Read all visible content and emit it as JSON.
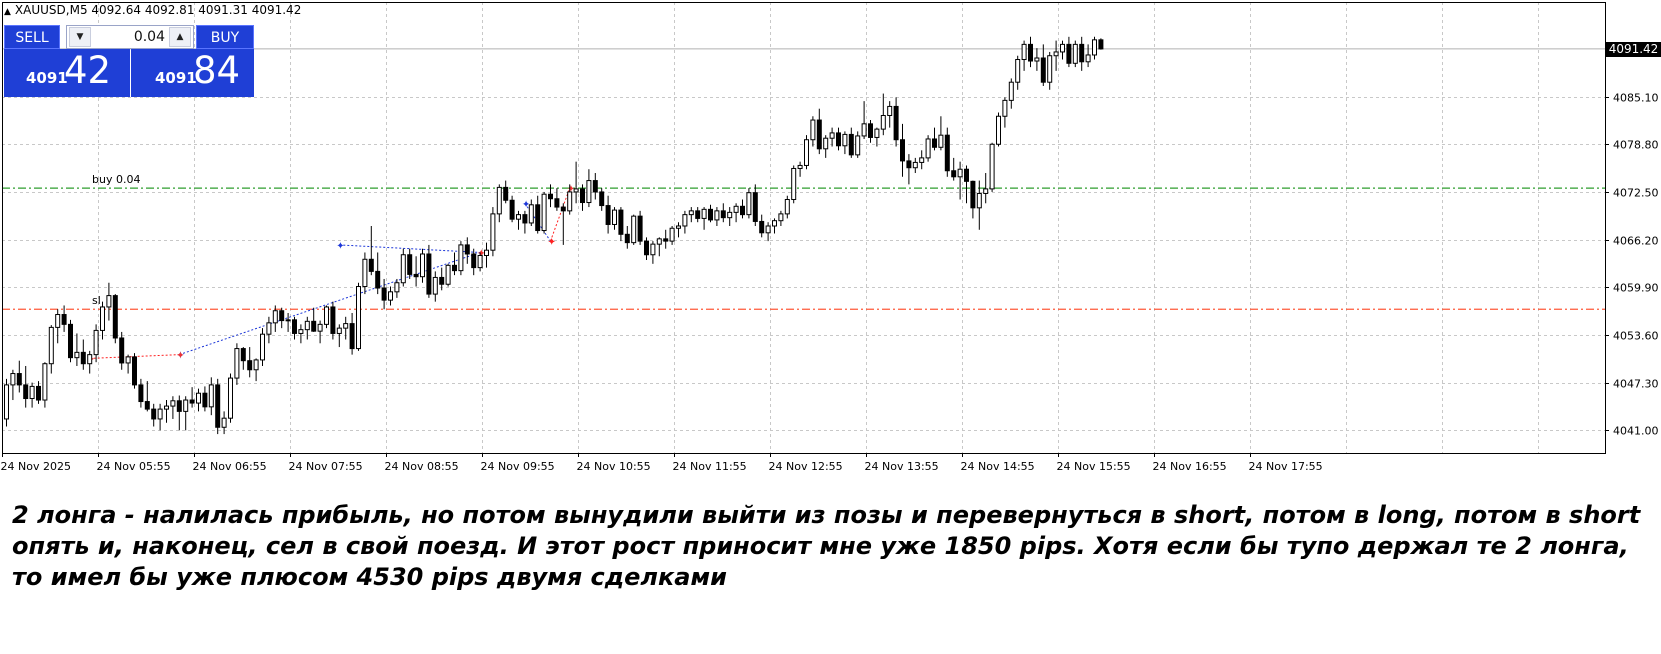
{
  "symbol_line": "XAUUSD,M5  4092.64 4092.81 4091.31 4091.42",
  "one_click": {
    "sell_label": "SELL",
    "buy_label": "BUY",
    "lot": "0.04",
    "sell_price_small": "4091",
    "sell_price_big": "42",
    "buy_price_small": "4091",
    "buy_price_big": "84"
  },
  "order_lines": {
    "buy_label": "buy 0.04",
    "sl_label": "sl",
    "buy_price": 4073.0,
    "sl_price": 4057.0
  },
  "current_price_tag": "4091.42",
  "caption": "2 лонга - налилась прибыль, но потом вынудили выйти из позы и перевернуться в short, потом в long, потом в short опять и, наконец, сел в свой поезд. И этот рост приносит мне уже 1850 pips. Хотя если бы тупо держал те 2 лонга, то имел бы уже плюсом 4530 pips двумя сделками",
  "colors": {
    "buy_line": "#2e9e2e",
    "sl_line": "#ff5a3a",
    "trade_line": "#1c36d8",
    "loss_line": "#ff2020",
    "panel": "#1f3fd6"
  },
  "chart_data": {
    "type": "candlestick",
    "symbol": "XAUUSD",
    "timeframe": "M5",
    "ylim": [
      4038.0,
      4097.6
    ],
    "yticks": [
      "4091.42",
      "4085.10",
      "4078.80",
      "4072.50",
      "4066.20",
      "4059.90",
      "4053.60",
      "4047.30",
      "4041.00"
    ],
    "ytick_values": [
      4085.1,
      4078.8,
      4072.5,
      4066.2,
      4059.9,
      4053.6,
      4047.3,
      4041.0
    ],
    "xticks": [
      "24 Nov 2025",
      "24 Nov 05:55",
      "24 Nov 06:55",
      "24 Nov 07:55",
      "24 Nov 08:55",
      "24 Nov 09:55",
      "24 Nov 10:55",
      "24 Nov 11:55",
      "24 Nov 12:55",
      "24 Nov 13:55",
      "24 Nov 14:55",
      "24 Nov 15:55",
      "24 Nov 16:55",
      "24 Nov 17:55"
    ],
    "grid": true,
    "candles": [
      [
        4042.5,
        4047.8,
        4041.5,
        4047.0
      ],
      [
        4047.0,
        4049.0,
        4045.0,
        4048.5
      ],
      [
        4048.5,
        4050.2,
        4046.0,
        4047.0
      ],
      [
        4047.0,
        4049.5,
        4044.0,
        4045.2
      ],
      [
        4045.2,
        4047.3,
        4044.0,
        4046.8
      ],
      [
        4046.8,
        4047.5,
        4044.5,
        4045.0
      ],
      [
        4045.0,
        4050.0,
        4044.0,
        4049.8
      ],
      [
        4049.8,
        4054.9,
        4048.5,
        4054.6
      ],
      [
        4054.6,
        4057.0,
        4052.5,
        4056.3
      ],
      [
        4056.3,
        4057.5,
        4054.0,
        4055.0
      ],
      [
        4055.0,
        4055.6,
        4050.0,
        4050.6
      ],
      [
        4050.6,
        4053.8,
        4049.5,
        4051.3
      ],
      [
        4051.3,
        4053.0,
        4049.0,
        4049.8
      ],
      [
        4049.8,
        4051.5,
        4048.5,
        4051.0
      ],
      [
        4051.0,
        4055.0,
        4050.0,
        4054.2
      ],
      [
        4054.2,
        4058.0,
        4053.0,
        4057.3
      ],
      [
        4057.3,
        4060.5,
        4055.5,
        4058.8
      ],
      [
        4058.8,
        4059.0,
        4052.5,
        4053.2
      ],
      [
        4053.2,
        4054.0,
        4049.0,
        4049.9
      ],
      [
        4049.9,
        4051.0,
        4048.5,
        4050.7
      ],
      [
        4050.7,
        4051.2,
        4046.5,
        4047.0
      ],
      [
        4047.0,
        4047.8,
        4044.0,
        4044.8
      ],
      [
        4044.8,
        4047.5,
        4043.5,
        4043.8
      ],
      [
        4043.8,
        4044.5,
        4041.5,
        4042.5
      ],
      [
        4042.5,
        4044.5,
        4041.0,
        4043.8
      ],
      [
        4043.8,
        4045.0,
        4042.0,
        4044.2
      ],
      [
        4044.2,
        4045.5,
        4042.5,
        4044.9
      ],
      [
        4044.9,
        4045.6,
        4041.0,
        4043.5
      ],
      [
        4043.5,
        4045.5,
        4041.0,
        4045.0
      ],
      [
        4045.0,
        4046.7,
        4044.0,
        4044.6
      ],
      [
        4044.6,
        4046.5,
        4043.5,
        4045.9
      ],
      [
        4045.9,
        4046.8,
        4043.5,
        4044.1
      ],
      [
        4044.1,
        4048.0,
        4043.0,
        4047.0
      ],
      [
        4047.0,
        4047.8,
        4040.5,
        4041.4
      ],
      [
        4041.4,
        4043.5,
        4040.5,
        4042.6
      ],
      [
        4042.6,
        4048.5,
        4042.0,
        4047.9
      ],
      [
        4047.9,
        4052.5,
        4047.0,
        4051.8
      ],
      [
        4051.8,
        4052.0,
        4049.0,
        4050.2
      ],
      [
        4050.2,
        4052.0,
        4048.0,
        4049.0
      ],
      [
        4049.0,
        4050.5,
        4047.5,
        4050.3
      ],
      [
        4050.3,
        4054.5,
        4049.5,
        4053.7
      ],
      [
        4053.7,
        4056.0,
        4052.5,
        4055.2
      ],
      [
        4055.2,
        4057.5,
        4054.0,
        4056.8
      ],
      [
        4056.8,
        4057.2,
        4054.5,
        4055.5
      ],
      [
        4055.5,
        4056.5,
        4054.0,
        4055.6
      ],
      [
        4055.6,
        4056.0,
        4053.0,
        4053.8
      ],
      [
        4053.8,
        4055.0,
        4052.5,
        4054.3
      ],
      [
        4054.3,
        4056.0,
        4053.0,
        4055.4
      ],
      [
        4055.4,
        4057.2,
        4054.0,
        4054.1
      ],
      [
        4054.1,
        4055.5,
        4052.5,
        4055.0
      ],
      [
        4055.0,
        4057.5,
        4054.5,
        4057.3
      ],
      [
        4057.3,
        4058.0,
        4053.0,
        4053.8
      ],
      [
        4053.8,
        4055.0,
        4052.0,
        4054.5
      ],
      [
        4054.5,
        4056.0,
        4053.0,
        4055.1
      ],
      [
        4055.1,
        4056.5,
        4051.0,
        4051.8
      ],
      [
        4051.8,
        4060.5,
        4051.5,
        4060.0
      ],
      [
        4060.0,
        4064.5,
        4059.0,
        4063.6
      ],
      [
        4063.6,
        4068.0,
        4061.5,
        4062.0
      ],
      [
        4062.0,
        4064.5,
        4059.0,
        4059.8
      ],
      [
        4059.8,
        4061.0,
        4057.0,
        4058.2
      ],
      [
        4058.2,
        4060.0,
        4057.5,
        4059.3
      ],
      [
        4059.3,
        4061.0,
        4058.5,
        4060.5
      ],
      [
        4060.5,
        4065.0,
        4060.0,
        4064.2
      ],
      [
        4064.2,
        4065.0,
        4061.0,
        4061.6
      ],
      [
        4061.6,
        4064.0,
        4060.0,
        4061.3
      ],
      [
        4061.3,
        4065.0,
        4060.5,
        4064.3
      ],
      [
        4064.3,
        4065.5,
        4058.5,
        4059.0
      ],
      [
        4059.0,
        4062.0,
        4058.0,
        4061.2
      ],
      [
        4061.2,
        4062.5,
        4059.5,
        4060.3
      ],
      [
        4060.3,
        4063.0,
        4060.0,
        4062.8
      ],
      [
        4062.8,
        4064.5,
        4061.5,
        4062.1
      ],
      [
        4062.1,
        4066.0,
        4061.5,
        4065.5
      ],
      [
        4065.5,
        4066.5,
        4063.0,
        4064.3
      ],
      [
        4064.3,
        4065.0,
        4061.5,
        4062.5
      ],
      [
        4062.5,
        4064.5,
        4062.0,
        4064.1
      ],
      [
        4064.1,
        4065.8,
        4062.5,
        4064.8
      ],
      [
        4064.8,
        4070.5,
        4064.0,
        4069.6
      ],
      [
        4069.6,
        4073.5,
        4068.5,
        4073.1
      ],
      [
        4073.1,
        4074.0,
        4071.0,
        4071.4
      ],
      [
        4071.4,
        4072.0,
        4068.5,
        4068.9
      ],
      [
        4068.9,
        4070.0,
        4067.5,
        4069.5
      ],
      [
        4069.5,
        4070.0,
        4067.0,
        4068.4
      ],
      [
        4068.4,
        4071.5,
        4068.0,
        4070.8
      ],
      [
        4070.8,
        4072.0,
        4067.0,
        4067.4
      ],
      [
        4067.4,
        4072.5,
        4067.0,
        4072.2
      ],
      [
        4072.2,
        4073.5,
        4070.5,
        4071.6
      ],
      [
        4071.6,
        4073.0,
        4070.0,
        4070.5
      ],
      [
        4070.5,
        4071.0,
        4065.5,
        4070.0
      ],
      [
        4070.0,
        4073.5,
        4069.5,
        4072.5
      ],
      [
        4072.5,
        4076.5,
        4071.0,
        4072.9
      ],
      [
        4072.9,
        4073.5,
        4070.0,
        4071.1
      ],
      [
        4071.1,
        4075.5,
        4070.5,
        4074.0
      ],
      [
        4074.0,
        4075.0,
        4071.5,
        4072.5
      ],
      [
        4072.5,
        4073.0,
        4070.0,
        4070.7
      ],
      [
        4070.7,
        4072.0,
        4067.0,
        4068.2
      ],
      [
        4068.2,
        4070.5,
        4067.5,
        4070.1
      ],
      [
        4070.1,
        4070.5,
        4066.0,
        4066.9
      ],
      [
        4066.9,
        4068.0,
        4065.0,
        4065.8
      ],
      [
        4065.8,
        4069.5,
        4065.5,
        4069.3
      ],
      [
        4069.3,
        4070.0,
        4065.5,
        4066.0
      ],
      [
        4066.0,
        4066.5,
        4063.5,
        4064.2
      ],
      [
        4064.2,
        4066.0,
        4063.0,
        4065.6
      ],
      [
        4065.6,
        4066.5,
        4064.0,
        4066.3
      ],
      [
        4066.3,
        4067.5,
        4065.0,
        4066.0
      ],
      [
        4066.0,
        4068.0,
        4065.5,
        4067.7
      ],
      [
        4067.7,
        4068.5,
        4066.5,
        4068.0
      ],
      [
        4068.0,
        4070.0,
        4067.0,
        4069.5
      ],
      [
        4069.5,
        4070.5,
        4068.5,
        4070.0
      ],
      [
        4070.0,
        4070.5,
        4068.5,
        4069.0
      ],
      [
        4069.0,
        4070.5,
        4067.5,
        4070.2
      ],
      [
        4070.2,
        4070.8,
        4068.5,
        4068.8
      ],
      [
        4068.8,
        4070.5,
        4068.0,
        4070.0
      ],
      [
        4070.0,
        4071.0,
        4068.5,
        4069.1
      ],
      [
        4069.1,
        4070.5,
        4068.0,
        4069.8
      ],
      [
        4069.8,
        4071.0,
        4068.5,
        4070.6
      ],
      [
        4070.6,
        4071.5,
        4069.0,
        4069.5
      ],
      [
        4069.5,
        4073.0,
        4069.0,
        4072.4
      ],
      [
        4072.4,
        4073.5,
        4068.0,
        4068.6
      ],
      [
        4068.6,
        4069.5,
        4066.5,
        4067.1
      ],
      [
        4067.1,
        4068.5,
        4066.0,
        4068.0
      ],
      [
        4068.0,
        4069.0,
        4067.0,
        4068.7
      ],
      [
        4068.7,
        4070.0,
        4068.0,
        4069.6
      ],
      [
        4069.6,
        4072.0,
        4069.0,
        4071.5
      ],
      [
        4071.5,
        4076.0,
        4071.0,
        4075.6
      ],
      [
        4075.6,
        4076.5,
        4074.5,
        4076.0
      ],
      [
        4076.0,
        4080.0,
        4075.5,
        4079.4
      ],
      [
        4079.4,
        4082.5,
        4078.5,
        4082.0
      ],
      [
        4082.0,
        4083.5,
        4077.5,
        4078.2
      ],
      [
        4078.2,
        4080.0,
        4077.0,
        4079.6
      ],
      [
        4079.6,
        4081.0,
        4078.5,
        4080.3
      ],
      [
        4080.3,
        4081.0,
        4078.0,
        4078.6
      ],
      [
        4078.6,
        4080.5,
        4077.5,
        4080.1
      ],
      [
        4080.1,
        4081.0,
        4077.0,
        4077.4
      ],
      [
        4077.4,
        4080.5,
        4077.0,
        4079.9
      ],
      [
        4079.9,
        4084.5,
        4079.5,
        4081.5
      ],
      [
        4081.5,
        4082.0,
        4079.0,
        4079.7
      ],
      [
        4079.7,
        4081.0,
        4078.5,
        4080.8
      ],
      [
        4080.8,
        4085.5,
        4080.0,
        4082.6
      ],
      [
        4082.6,
        4084.5,
        4081.0,
        4083.8
      ],
      [
        4083.8,
        4085.0,
        4078.5,
        4079.4
      ],
      [
        4079.4,
        4081.5,
        4074.5,
        4076.6
      ],
      [
        4076.6,
        4077.5,
        4073.5,
        4075.7
      ],
      [
        4075.7,
        4077.0,
        4075.0,
        4076.4
      ],
      [
        4076.4,
        4078.0,
        4075.5,
        4077.0
      ],
      [
        4077.0,
        4080.0,
        4076.5,
        4079.5
      ],
      [
        4079.5,
        4081.0,
        4078.0,
        4078.4
      ],
      [
        4078.4,
        4082.5,
        4078.0,
        4080.0
      ],
      [
        4080.0,
        4081.0,
        4074.5,
        4075.3
      ],
      [
        4075.3,
        4077.0,
        4074.0,
        4074.5
      ],
      [
        4074.5,
        4076.5,
        4071.5,
        4075.5
      ],
      [
        4075.5,
        4076.0,
        4071.0,
        4073.9
      ],
      [
        4073.9,
        4074.0,
        4069.0,
        4070.4
      ],
      [
        4070.4,
        4074.0,
        4067.5,
        4072.3
      ],
      [
        4072.3,
        4075.0,
        4071.0,
        4072.9
      ],
      [
        4072.9,
        4079.0,
        4072.5,
        4078.8
      ],
      [
        4078.8,
        4083.0,
        4078.5,
        4082.5
      ],
      [
        4082.5,
        4085.0,
        4081.0,
        4084.6
      ],
      [
        4084.6,
        4087.5,
        4083.5,
        4087.0
      ],
      [
        4087.0,
        4090.5,
        4086.0,
        4090.0
      ],
      [
        4090.0,
        4092.5,
        4088.5,
        4092.0
      ],
      [
        4092.0,
        4093.0,
        4089.0,
        4089.8
      ],
      [
        4089.8,
        4091.5,
        4088.5,
        4090.2
      ],
      [
        4090.2,
        4092.0,
        4086.5,
        4087.0
      ],
      [
        4087.0,
        4091.0,
        4086.0,
        4090.5
      ],
      [
        4090.5,
        4092.5,
        4088.5,
        4091.0
      ],
      [
        4091.0,
        4092.5,
        4090.0,
        4092.0
      ],
      [
        4092.0,
        4093.0,
        4089.0,
        4089.5
      ],
      [
        4089.5,
        4092.5,
        4089.0,
        4092.0
      ],
      [
        4092.0,
        4093.0,
        4088.5,
        4089.7
      ],
      [
        4089.7,
        4092.0,
        4089.0,
        4090.6
      ],
      [
        4090.6,
        4093.0,
        4090.0,
        4092.6
      ],
      [
        4092.6,
        4092.8,
        4091.3,
        4091.4
      ]
    ],
    "trades": [
      {
        "type": "buy",
        "from_index": 27,
        "from_price": 4051.0,
        "to_index": 74,
        "to_price": 4064.5
      },
      {
        "type": "buy",
        "from_index": 52,
        "from_price": 4065.5,
        "to_index": 74,
        "to_price": 4064.5
      },
      {
        "type": "sell",
        "from_index": 13,
        "from_price": 4050.5,
        "to_index": 27,
        "to_price": 4051.0
      },
      {
        "type": "buy",
        "from_index": 81,
        "from_price": 4071.0,
        "to_index": 85,
        "to_price": 4066.0
      },
      {
        "type": "sell",
        "from_index": 85,
        "from_price": 4066.0,
        "to_index": 88,
        "to_price": 4073.0
      }
    ]
  }
}
